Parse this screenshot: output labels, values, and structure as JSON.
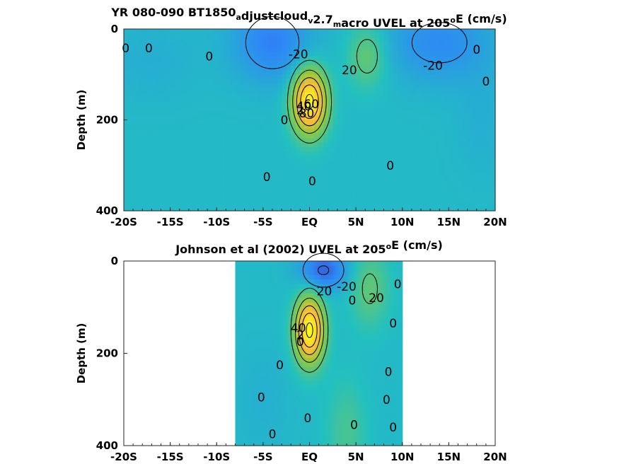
{
  "chart_data": [
    {
      "type": "heatmap",
      "title": {
        "parts": [
          {
            "text": "YR 080-090 BT1850",
            "sub": false
          },
          {
            "text": "a",
            "sub": true
          },
          {
            "text": "djustcloud",
            "sub": false
          },
          {
            "text": "v",
            "sub": true
          },
          {
            "text": "2.7",
            "sub": false
          },
          {
            "text": "m",
            "sub": true
          },
          {
            "text": "acro UVEL at 205",
            "sub": false
          },
          {
            "text": "o",
            "sup": true
          },
          {
            "text": "E (cm/s)",
            "sub": false
          }
        ]
      },
      "xlabel": "",
      "ylabel": "Depth (m)",
      "xlim": [
        -20,
        20
      ],
      "ylim": [
        400,
        0
      ],
      "xticks": [
        -20,
        -15,
        -10,
        -5,
        0,
        5,
        10,
        15,
        20
      ],
      "xtick_labels": [
        "-20S",
        "-15S",
        "-10S",
        "-5S",
        "EQ",
        "5N",
        "10N",
        "15N",
        "20N"
      ],
      "yticks": [
        0,
        200,
        400
      ],
      "ytick_labels": [
        "0",
        "200",
        "400"
      ],
      "data_xrange": [
        -20,
        20
      ],
      "colormap": [
        "#3e26a8",
        "#2e87f7",
        "#22c0c0",
        "#8fcb3c",
        "#fdbb3a",
        "#f9fb15"
      ],
      "clim": [
        -60,
        100
      ],
      "background_value": 0,
      "features": [
        {
          "kind": "core",
          "x": 0,
          "depth": 160,
          "value": 100,
          "sx": 1.3,
          "sy": 50
        },
        {
          "kind": "core",
          "x": 6.2,
          "depth": 60,
          "value": 25,
          "sx": 1.5,
          "sy": 50
        },
        {
          "kind": "core",
          "x": -4,
          "depth": 30,
          "value": -30,
          "sx": 3.0,
          "sy": 60
        },
        {
          "kind": "core",
          "x": 14,
          "depth": 30,
          "value": -25,
          "sx": 4.0,
          "sy": 60
        },
        {
          "kind": "core",
          "x": -17,
          "depth": 70,
          "value": -6,
          "sx": 3.5,
          "sy": 60
        },
        {
          "kind": "core",
          "x": 18.5,
          "depth": 200,
          "value": -6,
          "sx": 2.0,
          "sy": 80
        }
      ],
      "contour_labels": [
        {
          "text": "0",
          "x": -19.8,
          "depth": 42
        },
        {
          "text": "0",
          "x": -17.3,
          "depth": 42
        },
        {
          "text": "0",
          "x": -10.8,
          "depth": 60
        },
        {
          "text": "-20",
          "x": -1.2,
          "depth": 55
        },
        {
          "text": "20",
          "x": 4.3,
          "depth": 90
        },
        {
          "text": "-20",
          "x": 13.3,
          "depth": 80
        },
        {
          "text": "0",
          "x": 18,
          "depth": 45
        },
        {
          "text": "0",
          "x": 19,
          "depth": 115
        },
        {
          "text": "0",
          "x": -2.7,
          "depth": 200
        },
        {
          "text": "0",
          "x": 8.7,
          "depth": 300
        },
        {
          "text": "0",
          "x": -4.6,
          "depth": 325
        },
        {
          "text": "0",
          "x": 0.3,
          "depth": 335
        },
        {
          "text": "2",
          "x": -1.0,
          "depth": 178
        },
        {
          "text": "40",
          "x": -0.6,
          "depth": 170
        },
        {
          "text": "60",
          "x": 0.2,
          "depth": 165
        },
        {
          "text": "80",
          "x": -0.3,
          "depth": 185
        }
      ]
    },
    {
      "type": "heatmap",
      "title": {
        "parts": [
          {
            "text": "Johnson et al (2002) UVEL at 205",
            "sub": false
          },
          {
            "text": "o",
            "sup": true
          },
          {
            "text": "E (cm/s)",
            "sub": false
          }
        ]
      },
      "xlabel": "",
      "ylabel": "Depth (m)",
      "xlim": [
        -20,
        20
      ],
      "ylim": [
        400,
        0
      ],
      "xticks": [
        -20,
        -15,
        -10,
        -5,
        0,
        5,
        10,
        15,
        20
      ],
      "xtick_labels": [
        "-20S",
        "-15S",
        "-10S",
        "-5S",
        "EQ",
        "5N",
        "10N",
        "15N",
        "20N"
      ],
      "yticks": [
        0,
        200,
        400
      ],
      "ytick_labels": [
        "0",
        "200",
        "400"
      ],
      "data_xrange": [
        -8,
        10
      ],
      "colormap": [
        "#3e26a8",
        "#2e87f7",
        "#22c0c0",
        "#8fcb3c",
        "#fdbb3a",
        "#f9fb15"
      ],
      "clim": [
        -60,
        100
      ],
      "background_value": 0,
      "features": [
        {
          "kind": "core",
          "x": 0,
          "depth": 150,
          "value": 100,
          "sx": 1.1,
          "sy": 50
        },
        {
          "kind": "core",
          "x": 6.5,
          "depth": 60,
          "value": 22,
          "sx": 1.5,
          "sy": 60
        },
        {
          "kind": "core",
          "x": 1.5,
          "depth": 20,
          "value": -40,
          "sx": 1.8,
          "sy": 30
        },
        {
          "kind": "core",
          "x": 4,
          "depth": 370,
          "value": 15,
          "sx": 1.5,
          "sy": 80
        },
        {
          "kind": "core",
          "x": -5,
          "depth": 300,
          "value": -5,
          "sx": 2.0,
          "sy": 80
        }
      ],
      "contour_labels": [
        {
          "text": "20",
          "x": 1.6,
          "depth": 65
        },
        {
          "text": "-20",
          "x": 4.0,
          "depth": 55
        },
        {
          "text": "0",
          "x": 4.6,
          "depth": 85
        },
        {
          "text": "20",
          "x": 7.2,
          "depth": 80
        },
        {
          "text": "0",
          "x": 9.5,
          "depth": 50
        },
        {
          "text": "0",
          "x": 9.0,
          "depth": 135
        },
        {
          "text": "0",
          "x": 8.5,
          "depth": 240
        },
        {
          "text": "0",
          "x": -3.2,
          "depth": 225
        },
        {
          "text": "0",
          "x": -5.2,
          "depth": 295
        },
        {
          "text": "0",
          "x": -4.0,
          "depth": 375
        },
        {
          "text": "0",
          "x": -0.2,
          "depth": 340
        },
        {
          "text": "0",
          "x": 4.8,
          "depth": 355
        },
        {
          "text": "0",
          "x": 9.0,
          "depth": 360
        },
        {
          "text": "0",
          "x": 8.3,
          "depth": 300
        },
        {
          "text": "40",
          "x": -1.2,
          "depth": 145
        },
        {
          "text": "2",
          "x": -1.0,
          "depth": 160
        },
        {
          "text": "0",
          "x": -1.0,
          "depth": 175
        }
      ]
    }
  ]
}
